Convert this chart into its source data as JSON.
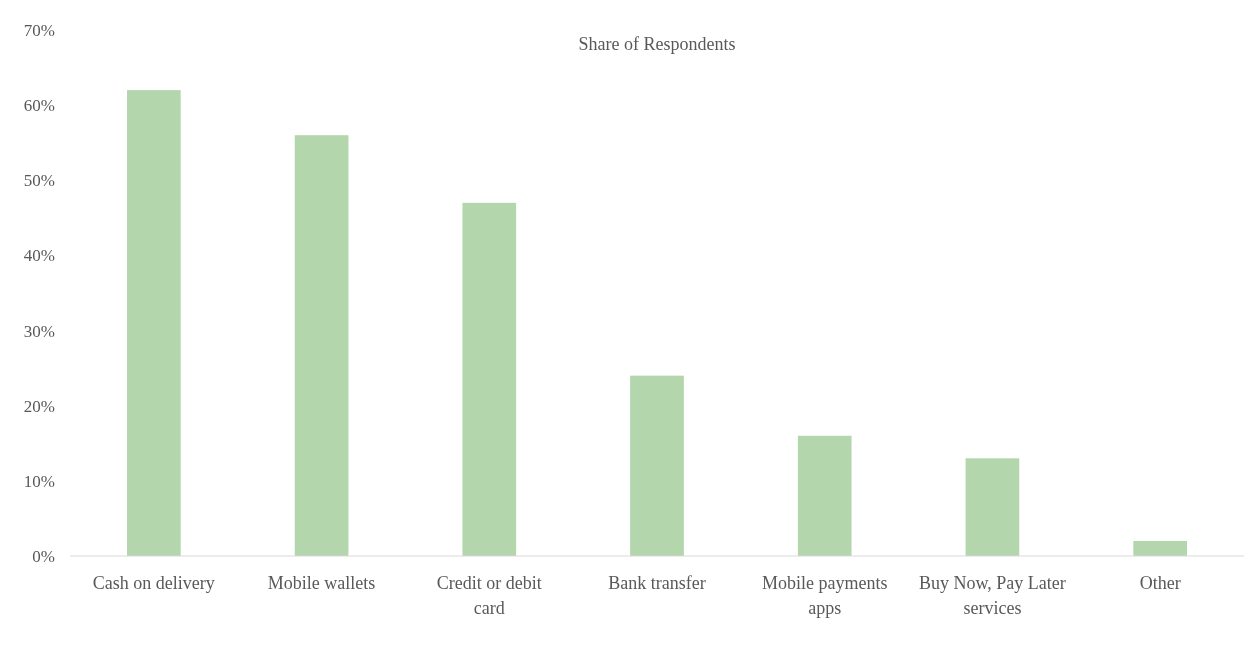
{
  "chart_data": {
    "type": "bar",
    "title": "Share of Respondents",
    "categories": [
      "Cash on delivery",
      "Mobile wallets",
      "Credit or debit card",
      "Bank transfer",
      "Mobile payments apps",
      "Buy Now, Pay Later services",
      "Other"
    ],
    "values": [
      62,
      56,
      47,
      24,
      16,
      13,
      2
    ],
    "color": "#b3d6ad",
    "ylim": [
      0,
      70
    ],
    "yticks": [
      {
        "value": 0,
        "label": "0%"
      },
      {
        "value": 10,
        "label": "10%"
      },
      {
        "value": 20,
        "label": "20%"
      },
      {
        "value": 30,
        "label": "30%"
      },
      {
        "value": 40,
        "label": "40%"
      },
      {
        "value": 50,
        "label": "50%"
      },
      {
        "value": 60,
        "label": "60%"
      },
      {
        "value": 70,
        "label": "70%"
      }
    ],
    "grid": false
  }
}
